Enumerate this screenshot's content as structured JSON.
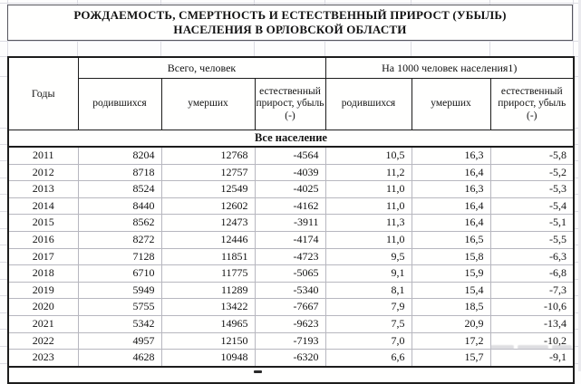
{
  "title": "РОЖДАЕМОСТЬ, СМЕРТНОСТЬ И ЕСТЕСТВЕННЫЙ ПРИРОСТ (УБЫЛЬ) НАСЕЛЕНИЯ В ОРЛОВСКОЙ ОБЛАСТИ",
  "table": {
    "years_header": "Годы",
    "group_total": "Всего, человек",
    "group_per1000": "На 1000 человек населения1)",
    "sub_headers": [
      "родившихся",
      "умерших",
      "естественный прирост, убыль (-)",
      "родившихся",
      "умерших",
      "естественный прирост, убыль (-)"
    ],
    "section": "Все население",
    "rows": [
      [
        "2011",
        "8204",
        "12768",
        "-4564",
        "10,5",
        "16,3",
        "-5,8"
      ],
      [
        "2012",
        "8718",
        "12757",
        "-4039",
        "11,2",
        "16,4",
        "-5,2"
      ],
      [
        "2013",
        "8524",
        "12549",
        "-4025",
        "11,0",
        "16,3",
        "-5,3"
      ],
      [
        "2014",
        "8440",
        "12602",
        "-4162",
        "11,0",
        "16,4",
        "-5,4"
      ],
      [
        "2015",
        "8562",
        "12473",
        "-3911",
        "11,3",
        "16,4",
        "-5,1"
      ],
      [
        "2016",
        "8272",
        "12446",
        "-4174",
        "11,0",
        "16,5",
        "-5,5"
      ],
      [
        "2017",
        "7128",
        "11851",
        "-4723",
        "9,5",
        "15,8",
        "-6,3"
      ],
      [
        "2018",
        "6710",
        "11775",
        "-5065",
        "9,1",
        "15,9",
        "-6,8"
      ],
      [
        "2019",
        "5949",
        "11289",
        "-5340",
        "8,1",
        "15,4",
        "-7,3"
      ],
      [
        "2020",
        "5755",
        "13422",
        "-7667",
        "7,9",
        "18,5",
        "-10,6"
      ],
      [
        "2021",
        "5342",
        "14965",
        "-9623",
        "7,5",
        "20,9",
        "-13,4"
      ],
      [
        "2022",
        "4957",
        "12150",
        "-7193",
        "7,0",
        "17,2",
        "-10,2"
      ],
      [
        "2023",
        "4628",
        "10948",
        "-6320",
        "6,6",
        "15,7",
        "-9,1"
      ]
    ]
  },
  "chart_data": {
    "type": "table",
    "title": "РОЖДАЕМОСТЬ, СМЕРТНОСТЬ И ЕСТЕСТВЕННЫЙ ПРИРОСТ (УБЫЛЬ) НАСЕЛЕНИЯ В ОРЛОВСКОЙ ОБЛАСТИ",
    "section": "Все население",
    "column_groups": [
      "Годы",
      "Всего, человек",
      "На 1000 человек населения1)"
    ],
    "columns": [
      "Годы",
      "Всего, человек: родившихся",
      "Всего, человек: умерших",
      "Всего, человек: естественный прирост, убыль (-)",
      "На 1000 человек населения: родившихся",
      "На 1000 человек населения: умерших",
      "На 1000 человек населения: естественный прирост, убыль (-)"
    ],
    "rows": [
      [
        2011,
        8204,
        12768,
        -4564,
        10.5,
        16.3,
        -5.8
      ],
      [
        2012,
        8718,
        12757,
        -4039,
        11.2,
        16.4,
        -5.2
      ],
      [
        2013,
        8524,
        12549,
        -4025,
        11.0,
        16.3,
        -5.3
      ],
      [
        2014,
        8440,
        12602,
        -4162,
        11.0,
        16.4,
        -5.4
      ],
      [
        2015,
        8562,
        12473,
        -3911,
        11.3,
        16.4,
        -5.1
      ],
      [
        2016,
        8272,
        12446,
        -4174,
        11.0,
        16.5,
        -5.5
      ],
      [
        2017,
        7128,
        11851,
        -4723,
        9.5,
        15.8,
        -6.3
      ],
      [
        2018,
        6710,
        11775,
        -5065,
        9.1,
        15.9,
        -6.8
      ],
      [
        2019,
        5949,
        11289,
        -5340,
        8.1,
        15.4,
        -7.3
      ],
      [
        2020,
        5755,
        13422,
        -7667,
        7.9,
        18.5,
        -10.6
      ],
      [
        2021,
        5342,
        14965,
        -9623,
        7.5,
        20.9,
        -13.4
      ],
      [
        2022,
        4957,
        12150,
        -7193,
        7.0,
        17.2,
        -10.2
      ],
      [
        2023,
        4628,
        10948,
        -6320,
        6.6,
        15.7,
        -9.1
      ]
    ],
    "colors": {
      "text": "#121212",
      "table_border": "#1c1c1c",
      "cell_border": "#b7b7bf",
      "background_grid": "#dcdce3"
    }
  }
}
